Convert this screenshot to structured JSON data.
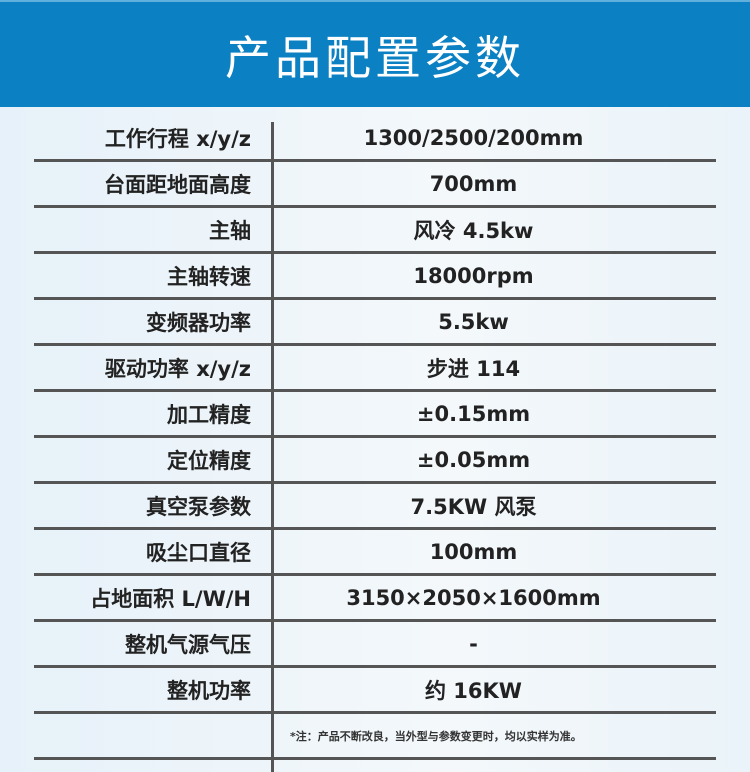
{
  "title": "产品配置参数",
  "rows": [
    {
      "label": "工作行程 x/y/z",
      "value": "1300/2500/200mm"
    },
    {
      "label": "台面距地面高度",
      "value": "700mm"
    },
    {
      "label": "主轴",
      "value": "风冷 4.5kw"
    },
    {
      "label": "主轴转速",
      "value": "18000rpm"
    },
    {
      "label": "变频器功率",
      "value": "5.5kw"
    },
    {
      "label": "驱动功率 x/y/z",
      "value": "步进 114"
    },
    {
      "label": "加工精度",
      "value": "±0.15mm"
    },
    {
      "label": "定位精度",
      "value": "±0.05mm"
    },
    {
      "label": "真空泵参数",
      "value": "7.5KW 风泵"
    },
    {
      "label": "吸尘口直径",
      "value": "100mm"
    },
    {
      "label": "占地面积 L/W/H",
      "value": "3150×2050×1600mm"
    },
    {
      "label": "整机气源气压",
      "value": "-"
    },
    {
      "label": "整机功率",
      "value": "约 16KW"
    }
  ],
  "note": "*注：产品不断改良，当外型与参数变更时，均以实样为准。",
  "colors": {
    "header": "#0b80c2",
    "lines": "#555555"
  }
}
